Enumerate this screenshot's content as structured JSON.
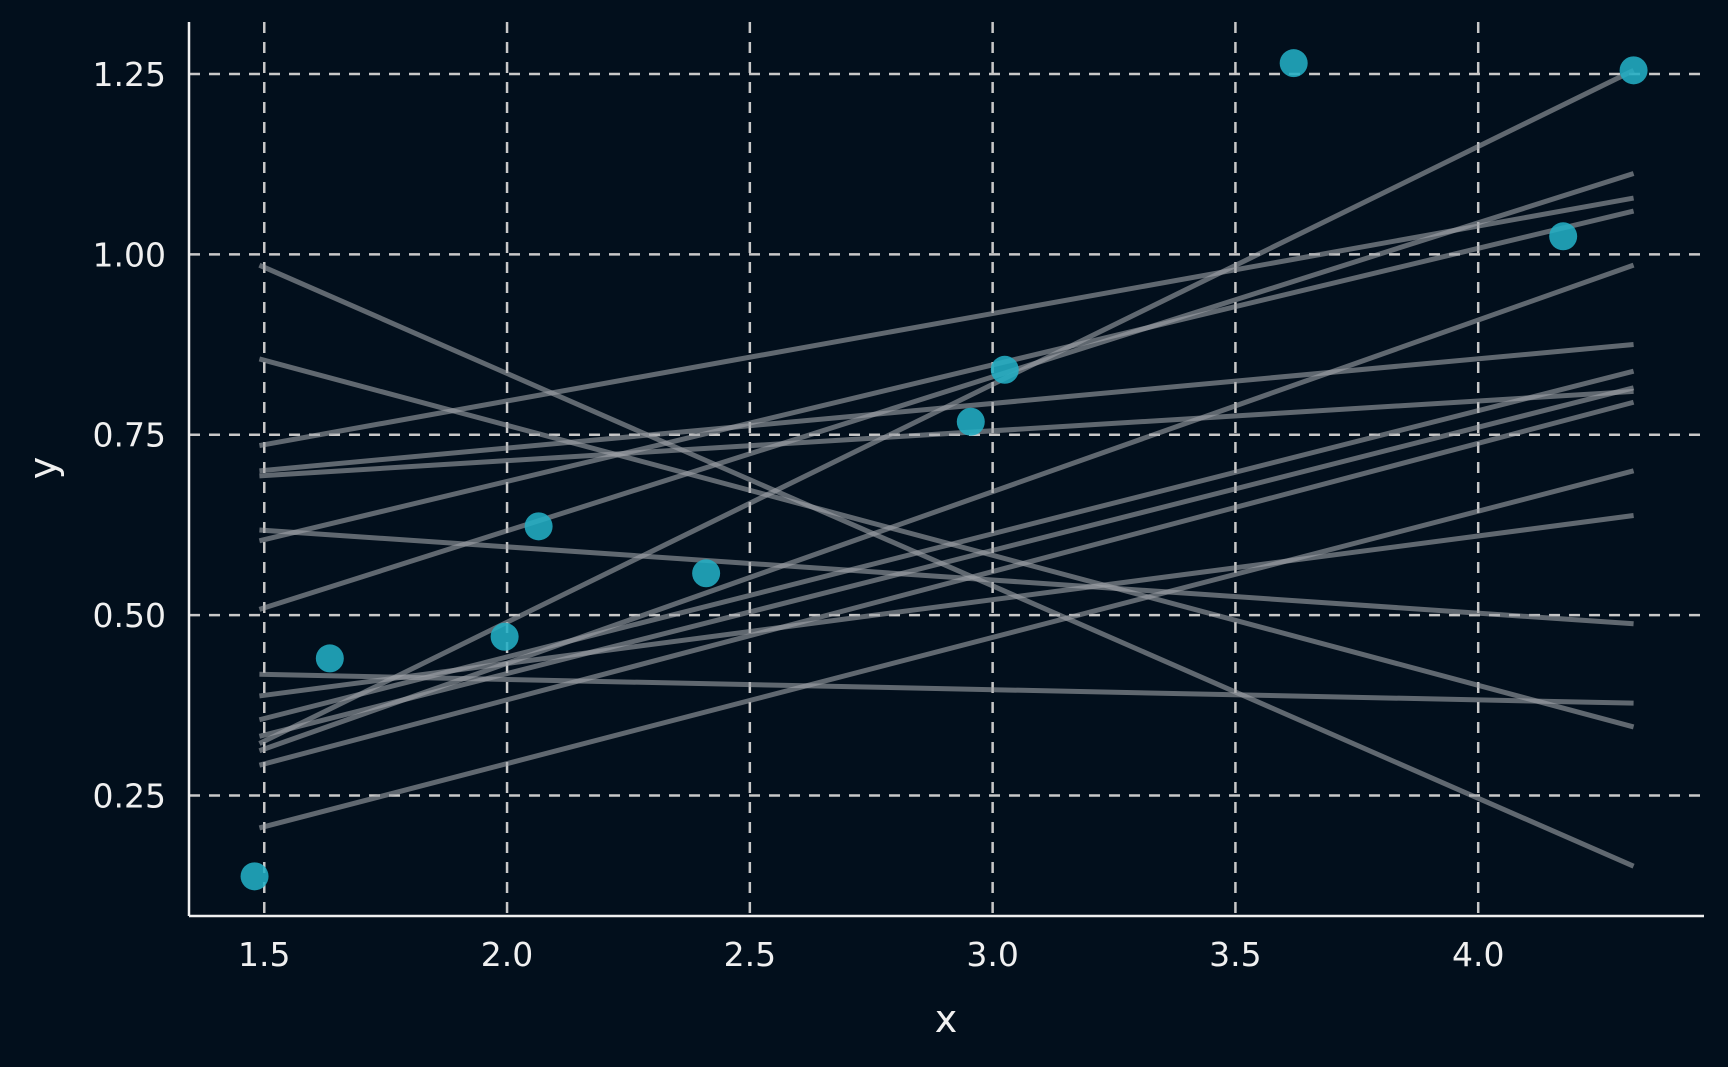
{
  "chart_data": {
    "type": "scatter",
    "title": "",
    "xlabel": "x",
    "ylabel": "y",
    "xlim": [
      1.345,
      4.465
    ],
    "ylim": [
      0.083,
      1.322
    ],
    "x_ticks": [
      1.5,
      2.0,
      2.5,
      3.0,
      3.5,
      4.0
    ],
    "x_tick_labels": [
      "1.5",
      "2.0",
      "2.5",
      "3.0",
      "3.5",
      "4.0"
    ],
    "y_ticks": [
      0.25,
      0.5,
      0.75,
      1.0,
      1.25
    ],
    "y_tick_labels": [
      "0.25",
      "0.50",
      "0.75",
      "1.00",
      "1.25"
    ],
    "grid": true,
    "grid_style": "dashed",
    "points": [
      {
        "x": 1.48,
        "y": 0.138
      },
      {
        "x": 1.635,
        "y": 0.44
      },
      {
        "x": 1.995,
        "y": 0.47
      },
      {
        "x": 2.065,
        "y": 0.623
      },
      {
        "x": 2.41,
        "y": 0.558
      },
      {
        "x": 2.955,
        "y": 0.768
      },
      {
        "x": 3.025,
        "y": 0.84
      },
      {
        "x": 3.62,
        "y": 1.265
      },
      {
        "x": 4.175,
        "y": 1.025
      },
      {
        "x": 4.32,
        "y": 1.255
      }
    ],
    "fitted_lines": [
      {
        "x": [
          1.49,
          4.32
        ],
        "y": [
          0.735,
          1.078
        ]
      },
      {
        "x": [
          1.49,
          4.32
        ],
        "y": [
          0.7,
          0.875
        ]
      },
      {
        "x": [
          1.49,
          4.32
        ],
        "y": [
          0.693,
          0.81
        ]
      },
      {
        "x": [
          1.49,
          4.32
        ],
        "y": [
          0.603,
          1.06
        ]
      },
      {
        "x": [
          1.49,
          4.32
        ],
        "y": [
          0.508,
          1.112
        ]
      },
      {
        "x": [
          1.49,
          4.32
        ],
        "y": [
          0.322,
          1.255
        ]
      },
      {
        "x": [
          1.49,
          4.32
        ],
        "y": [
          0.312,
          0.985
        ]
      },
      {
        "x": [
          1.49,
          4.32
        ],
        "y": [
          0.355,
          0.838
        ]
      },
      {
        "x": [
          1.49,
          4.32
        ],
        "y": [
          0.332,
          0.815
        ]
      },
      {
        "x": [
          1.49,
          4.32
        ],
        "y": [
          0.292,
          0.795
        ]
      },
      {
        "x": [
          1.49,
          4.32
        ],
        "y": [
          0.388,
          0.638
        ]
      },
      {
        "x": [
          1.49,
          4.32
        ],
        "y": [
          0.205,
          0.7
        ]
      },
      {
        "x": [
          1.49,
          4.32
        ],
        "y": [
          0.418,
          0.378
        ]
      },
      {
        "x": [
          1.49,
          4.32
        ],
        "y": [
          0.618,
          0.488
        ]
      },
      {
        "x": [
          1.49,
          4.32
        ],
        "y": [
          0.855,
          0.345
        ]
      },
      {
        "x": [
          1.49,
          4.32
        ],
        "y": [
          0.985,
          0.152
        ]
      }
    ],
    "colors": {
      "background": "#020f1c",
      "points": "#22aec4",
      "lines": "#a0a4a8",
      "grid": "#c8c8c8",
      "axis": "#f0f0f0"
    }
  }
}
